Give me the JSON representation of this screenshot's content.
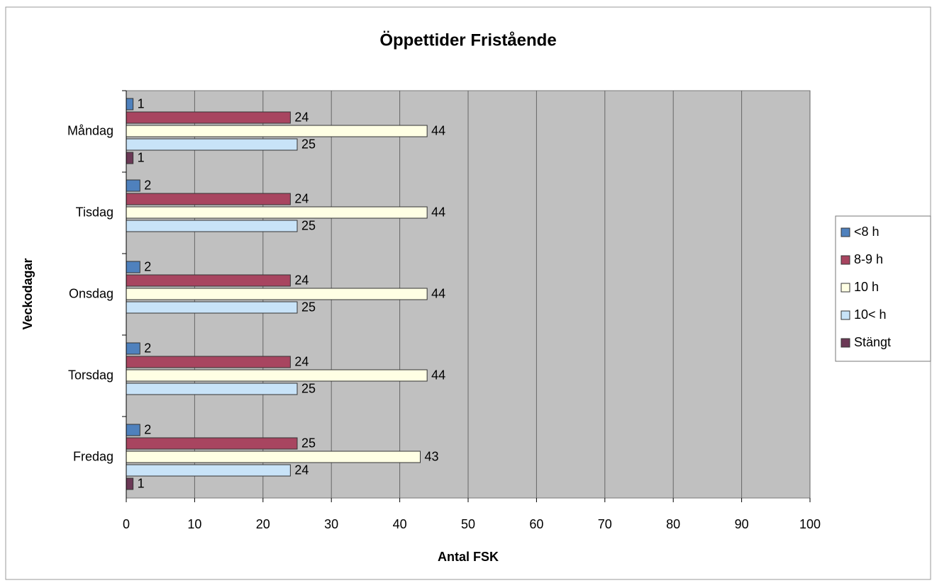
{
  "chart_data": {
    "type": "hbar",
    "title": "Öppettider Fristående",
    "xlabel": "Antal FSK",
    "ylabel": "Veckodagar",
    "categories": [
      "Måndag",
      "Tisdag",
      "Onsdag",
      "Torsdag",
      "Fredag"
    ],
    "series": [
      {
        "name": "<8 h",
        "color": "#4f81bd",
        "values": [
          1,
          2,
          2,
          2,
          2
        ]
      },
      {
        "name": "8-9 h",
        "color": "#a84560",
        "values": [
          24,
          24,
          24,
          24,
          25
        ]
      },
      {
        "name": "10 h",
        "color": "#ffffe4",
        "values": [
          44,
          44,
          44,
          44,
          43
        ]
      },
      {
        "name": "10< h",
        "color": "#c8e3f8",
        "values": [
          25,
          25,
          25,
          25,
          24
        ]
      },
      {
        "name": "Stängt",
        "color": "#6b3956",
        "values": [
          1,
          null,
          null,
          null,
          1
        ]
      }
    ],
    "xlim": [
      0,
      100
    ],
    "xticks": [
      0,
      10,
      20,
      30,
      40,
      50,
      60,
      70,
      80,
      90,
      100
    ],
    "grid": true,
    "legend": "right"
  }
}
